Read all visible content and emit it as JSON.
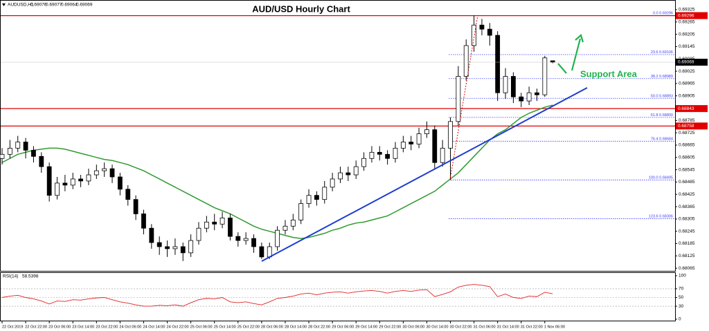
{
  "chart_data": {
    "type": "candlestick",
    "title": "AUD/USD Hourly Chart",
    "symbol": "AUDUSD,H1",
    "categories": [
      "22 Oct 2019",
      null,
      null,
      "22 Oct 22:00",
      null,
      null,
      "23 Oct 06:00",
      null,
      null,
      "23 Oct 14:00",
      null,
      null,
      "23 Oct 22:00",
      null,
      null,
      "24 Oct 06:00",
      null,
      null,
      "24 Oct 14:00",
      null,
      null,
      "24 Oct 22:00",
      null,
      null,
      "25 Oct 06:00",
      null,
      null,
      "25 Oct 14:00",
      null,
      null,
      "25 Oct 22:00",
      null,
      null,
      "28 Oct 06:00",
      null,
      null,
      "28 Oct 14:00",
      null,
      null,
      "28 Oct 22:00",
      null,
      null,
      "29 Oct 06:00",
      null,
      null,
      "29 Oct 14:00",
      null,
      null,
      "29 Oct 22:00",
      null,
      null,
      "30 Oct 06:00",
      null,
      null,
      "30 Oct 14:00",
      null,
      null,
      "30 Oct 22:00",
      null,
      null,
      "31 Oct 06:00",
      null,
      null,
      "31 Oct 14:00",
      null,
      null,
      "31 Oct 22:00",
      null,
      null,
      "1 Nov 06:00",
      null
    ],
    "open": [
      0.686,
      0.6862,
      0.6865,
      0.6868,
      0.6864,
      0.6861,
      0.6856,
      0.6842,
      0.6848,
      0.6847,
      0.685,
      0.6849,
      0.6852,
      0.6854,
      0.6855,
      0.6851,
      0.6845,
      0.684,
      0.6833,
      0.6826,
      0.6819,
      0.6817,
      0.6816,
      0.6817,
      0.6814,
      0.682,
      0.6826,
      0.6829,
      0.6828,
      0.6831,
      0.6822,
      0.682,
      0.6821,
      0.6817,
      0.6812,
      0.6817,
      0.6825,
      0.6827,
      0.683,
      0.6838,
      0.6842,
      0.684,
      0.6846,
      0.685,
      0.6853,
      0.6852,
      0.6856,
      0.686,
      0.6863,
      0.6862,
      0.686,
      0.6865,
      0.6868,
      0.6867,
      0.6872,
      0.6874,
      0.6858,
      0.6865,
      0.6878,
      0.69,
      0.6915,
      0.6925,
      0.6923,
      0.692,
      0.6892,
      0.69,
      0.689,
      0.6888,
      0.6892,
      0.6891,
      0.69076
    ],
    "high": [
      0.6865,
      0.6869,
      0.6871,
      0.687,
      0.6866,
      0.6863,
      0.6858,
      0.6851,
      0.6852,
      0.6853,
      0.6852,
      0.6855,
      0.6857,
      0.6858,
      0.6857,
      0.6853,
      0.6847,
      0.6842,
      0.6835,
      0.6828,
      0.6822,
      0.682,
      0.6821,
      0.6819,
      0.6823,
      0.6829,
      0.6832,
      0.6833,
      0.6834,
      0.6833,
      0.6824,
      0.6824,
      0.6823,
      0.6819,
      0.6819,
      0.6827,
      0.683,
      0.6833,
      0.684,
      0.6845,
      0.6844,
      0.6849,
      0.6853,
      0.6856,
      0.6856,
      0.6859,
      0.6863,
      0.6866,
      0.6866,
      0.6864,
      0.6868,
      0.6871,
      0.6871,
      0.6875,
      0.6878,
      0.6876,
      0.6869,
      0.688,
      0.6905,
      0.6918,
      0.69296,
      0.6928,
      0.6926,
      0.6922,
      0.6904,
      0.6902,
      0.6892,
      0.6895,
      0.6894,
      0.691,
      0.69077
    ],
    "low": [
      0.6857,
      0.686,
      0.6863,
      0.686,
      0.6858,
      0.6853,
      0.6839,
      0.684,
      0.6844,
      0.6845,
      0.6846,
      0.6847,
      0.685,
      0.6851,
      0.6848,
      0.6842,
      0.6837,
      0.683,
      0.6823,
      0.6816,
      0.6813,
      0.6812,
      0.6813,
      0.681,
      0.6812,
      0.6818,
      0.6824,
      0.6825,
      0.6826,
      0.682,
      0.6817,
      0.6818,
      0.6814,
      0.6811,
      0.6811,
      0.6815,
      0.6823,
      0.6825,
      0.6828,
      0.6836,
      0.6837,
      0.6838,
      0.6844,
      0.6848,
      0.6849,
      0.685,
      0.6854,
      0.6858,
      0.6859,
      0.6857,
      0.6858,
      0.6863,
      0.6864,
      0.6865,
      0.687,
      0.6855,
      0.6856,
      0.68495,
      0.6876,
      0.6898,
      0.6912,
      0.692,
      0.6915,
      0.6888,
      0.6889,
      0.6887,
      0.6885,
      0.6886,
      0.6888,
      0.689,
      0.69064
    ],
    "close": [
      0.6862,
      0.6865,
      0.6868,
      0.6864,
      0.6861,
      0.6856,
      0.6842,
      0.6848,
      0.6847,
      0.685,
      0.6849,
      0.6852,
      0.6854,
      0.6855,
      0.6851,
      0.6845,
      0.684,
      0.6833,
      0.6826,
      0.6819,
      0.6817,
      0.6816,
      0.6817,
      0.6814,
      0.682,
      0.6826,
      0.6829,
      0.6828,
      0.6831,
      0.6822,
      0.682,
      0.6821,
      0.6817,
      0.6812,
      0.6817,
      0.6825,
      0.6827,
      0.683,
      0.6838,
      0.6842,
      0.684,
      0.6846,
      0.685,
      0.6853,
      0.6852,
      0.6856,
      0.686,
      0.6863,
      0.6862,
      0.686,
      0.6865,
      0.6868,
      0.6867,
      0.6872,
      0.6874,
      0.6858,
      0.6865,
      0.6878,
      0.69,
      0.6915,
      0.6925,
      0.6923,
      0.692,
      0.6892,
      0.69,
      0.689,
      0.6888,
      0.6892,
      0.6891,
      0.6909,
      0.69069
    ],
    "ylim": [
      0.68052,
      0.69362
    ],
    "yticks": [
      0.69325,
      0.69265,
      0.69205,
      0.69145,
      0.69085,
      0.69025,
      0.68965,
      0.68905,
      0.68845,
      0.68785,
      0.68725,
      0.68665,
      0.68605,
      0.68545,
      0.68485,
      0.68425,
      0.68365,
      0.68305,
      0.68245,
      0.68185,
      0.68125,
      0.68065
    ],
    "ma": {
      "color": "#2f9a2f",
      "values": [
        0.6858,
        0.686,
        0.6862,
        0.6863,
        0.6864,
        0.68645,
        0.6865,
        0.6865,
        0.68645,
        0.68635,
        0.68625,
        0.68615,
        0.68605,
        0.68595,
        0.6859,
        0.6858,
        0.6857,
        0.68555,
        0.6854,
        0.6852,
        0.685,
        0.6848,
        0.6846,
        0.6844,
        0.6842,
        0.684,
        0.6838,
        0.6836,
        0.68345,
        0.6833,
        0.6831,
        0.6829,
        0.6827,
        0.68255,
        0.68245,
        0.68235,
        0.68225,
        0.68215,
        0.6821,
        0.68215,
        0.68225,
        0.68235,
        0.6825,
        0.6826,
        0.68275,
        0.68285,
        0.6829,
        0.683,
        0.6831,
        0.6832,
        0.6834,
        0.6836,
        0.6838,
        0.684,
        0.6842,
        0.6844,
        0.6847,
        0.685,
        0.6853,
        0.6857,
        0.6861,
        0.6865,
        0.6869,
        0.6872,
        0.6874,
        0.6877,
        0.688,
        0.6882,
        0.68835,
        0.6885,
        0.6886
      ]
    },
    "levels": {
      "color": "#e00000",
      "values": [
        0.69296,
        0.68843,
        0.68758
      ]
    },
    "fib": {
      "color": "#3a3aff",
      "levels": [
        {
          "ratio": {
            "value": 0,
            "label": "0.0"
          },
          "price": 0.69296
        },
        {
          "ratio": 23.6,
          "price": 0.69106
        },
        {
          "ratio": 38.2,
          "price": 0.68989
        },
        {
          "ratio": {
            "value": 50,
            "label": "50.0"
          },
          "price": 0.68893
        },
        {
          "ratio": 61.8,
          "price": {
            "value": 0.688,
            "label": "0.68800"
          }
        },
        {
          "ratio": 76.4,
          "price": 0.68684
        },
        {
          "ratio": {
            "value": 100,
            "label": "100.0"
          },
          "price": 0.68495
        },
        {
          "ratio": 123.6,
          "price": 0.68306
        }
      ]
    },
    "annotation": "Support Area",
    "rsi": {
      "label": "RSI(14)",
      "color": "#e02020",
      "ylim": [
        0,
        100
      ],
      "yticks": [
        100,
        70,
        50,
        30,
        0
      ],
      "values": [
        50,
        53,
        55,
        50,
        47,
        42,
        35,
        42,
        41,
        45,
        44,
        47,
        49,
        50,
        45,
        40,
        37,
        33,
        30,
        30,
        32,
        31,
        33,
        30,
        38,
        45,
        48,
        47,
        50,
        40,
        38,
        40,
        36,
        33,
        40,
        48,
        50,
        53,
        58,
        60,
        56,
        60,
        62,
        63,
        60,
        63,
        65,
        66,
        64,
        60,
        64,
        66,
        64,
        67,
        68,
        52,
        57,
        63,
        74,
        78,
        80,
        78,
        75,
        52,
        58,
        50,
        48,
        53,
        52,
        62,
        58.5398
      ]
    }
  }
}
